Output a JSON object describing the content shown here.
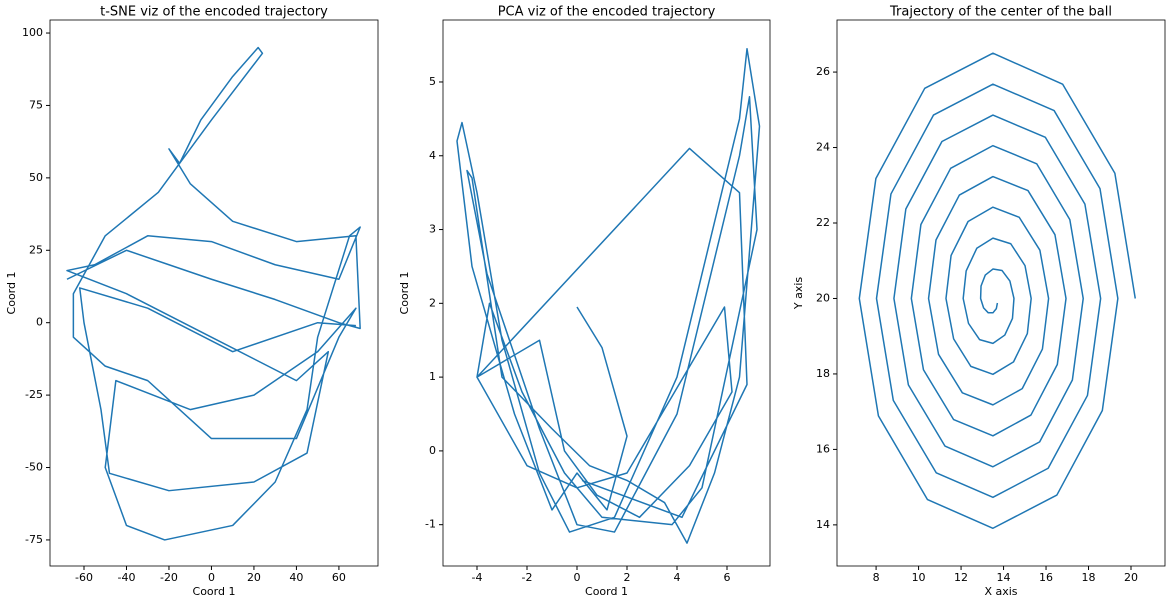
{
  "chart_data": [
    {
      "type": "line",
      "title": "t-SNE viz of the encoded trajectory",
      "xlabel": "Coord 1",
      "ylabel": "Coord 1",
      "color": "#1f77b4",
      "xlim": [
        -76,
        78.4
      ],
      "ylim": [
        -84,
        104.5
      ],
      "xticks": [
        -60,
        -40,
        -20,
        0,
        20,
        40,
        60
      ],
      "yticks": [
        -75,
        -50,
        -25,
        0,
        25,
        50,
        75,
        100
      ],
      "x": [
        -68,
        -40,
        -20,
        0,
        30,
        60,
        70,
        68,
        40,
        10,
        -10,
        -20,
        -15,
        -5,
        10,
        22,
        24,
        0,
        -25,
        -50,
        -65,
        -65,
        -50,
        -30,
        0,
        40,
        60,
        68,
        50,
        20,
        -10,
        -45,
        -50,
        -40,
        -22,
        10,
        30,
        45,
        50,
        65,
        70,
        60,
        30,
        0,
        -30,
        -55,
        -68,
        -40,
        0,
        40,
        55,
        45,
        20,
        -20,
        -48,
        -52,
        -60,
        -62,
        -30,
        10,
        50,
        68
      ],
      "values": [
        15,
        25,
        20,
        15,
        8,
        0,
        -2,
        30,
        28,
        35,
        48,
        60,
        55,
        70,
        85,
        95,
        93,
        70,
        45,
        30,
        10,
        -5,
        -15,
        -20,
        -40,
        -40,
        -5,
        5,
        -10,
        -25,
        -30,
        -20,
        -50,
        -70,
        -75,
        -70,
        -55,
        -30,
        -5,
        30,
        33,
        15,
        20,
        28,
        30,
        20,
        18,
        10,
        -5,
        -20,
        -10,
        -45,
        -55,
        -58,
        -52,
        -30,
        0,
        12,
        5,
        -10,
        0,
        -1
      ]
    },
    {
      "type": "line",
      "title": "PCA viz of the encoded trajectory",
      "xlabel": "Coord 1",
      "ylabel": "Coord 1",
      "color": "#1f77b4",
      "xlim": [
        -5.36,
        7.72
      ],
      "ylim": [
        -1.56,
        5.84
      ],
      "xticks": [
        -4,
        -2,
        0,
        2,
        4,
        6
      ],
      "yticks": [
        -1,
        0,
        1,
        2,
        3,
        4,
        5
      ],
      "x": [
        0,
        1,
        2,
        1.2,
        0,
        -1,
        -2.5,
        -4.2,
        -4.8,
        -4.6,
        -4,
        -3,
        -1.5,
        -0.3,
        1.5,
        4,
        6.5,
        6.8,
        7.3,
        6.5,
        5.5,
        4.4,
        3.5,
        2,
        0.5,
        -1,
        -3,
        -4.2,
        -4.4,
        -3.6,
        -1.5,
        0,
        1.5,
        4,
        6.5,
        6.9,
        7.2,
        5,
        3.8,
        1,
        -0.5,
        -2.2,
        -3.5,
        -4,
        -2,
        0,
        2,
        5.9,
        6.2,
        4.5,
        2.5,
        0.8,
        -0.5,
        -1.5,
        -4,
        4.5,
        6.5,
        6.8,
        4.2,
        0.2
      ],
      "values": [
        1.95,
        1.4,
        0.2,
        -0.8,
        -0.3,
        -0.8,
        0.5,
        2.5,
        4.2,
        4.45,
        3.5,
        1.5,
        -0.3,
        -1.1,
        -0.9,
        1,
        4.5,
        5.45,
        4.4,
        1,
        -0.3,
        -1.25,
        -0.7,
        -0.4,
        -0.2,
        0.3,
        1,
        3.7,
        3.8,
        2.4,
        0.3,
        -1,
        -1.1,
        0.5,
        4,
        4.8,
        3,
        -0.5,
        -1,
        -0.9,
        -0.3,
        0.8,
        2,
        1,
        -0.2,
        -0.5,
        -0.3,
        1.95,
        0.8,
        -0.2,
        -0.9,
        -0.6,
        0,
        1.5,
        1,
        4.1,
        3.5,
        0.9,
        -0.9,
        -0.4
      ]
    },
    {
      "type": "line",
      "title": "Trajectory of the center of the ball",
      "xlabel": "X axis",
      "ylabel": "Y axis",
      "color": "#1f77b4",
      "xlim": [
        6.16,
        21.6
      ],
      "ylim": [
        12.91,
        27.38
      ],
      "xticks": [
        8,
        10,
        12,
        14,
        16,
        18,
        20
      ],
      "yticks": [
        14,
        16,
        18,
        20,
        22,
        24,
        26
      ],
      "x": [
        20.2,
        19.24,
        16.78,
        13.5,
        10.29,
        7.99,
        7.21,
        8.11,
        10.42,
        13.5,
        16.51,
        18.65,
        19.38,
        18.54,
        16.38,
        13.5,
        10.7,
        8.7,
        8.02,
        8.81,
        10.83,
        13.5,
        16.1,
        17.95,
        18.57,
        17.83,
        15.97,
        13.5,
        11.1,
        9.4,
        8.84,
        9.52,
        11.24,
        13.5,
        15.7,
        17.24,
        17.75,
        17.12,
        15.56,
        13.5,
        11.51,
        10.11,
        9.66,
        10.23,
        11.65,
        13.5,
        15.29,
        16.53,
        16.94,
        16.42,
        15.15,
        13.5,
        11.92,
        10.82,
        10.47,
        10.94,
        12.06,
        13.5,
        14.88,
        15.83,
        16.12,
        15.71,
        14.74,
        13.5,
        12.33,
        11.53,
        11.29,
        11.65,
        12.46,
        13.5,
        14.47,
        15.12,
        15.3,
        15.01,
        14.34,
        13.5,
        12.74,
        12.24,
        12.1,
        12.35,
        12.87,
        13.5,
        14.06,
        14.42,
        14.49,
        14.3,
        13.93,
        13.5,
        13.14,
        12.94,
        12.92,
        13.06,
        13.28,
        13.5,
        13.66,
        13.71
      ],
      "values": [
        20.0,
        23.32,
        25.68,
        26.5,
        25.57,
        23.18,
        20.0,
        16.89,
        14.67,
        13.91,
        14.79,
        17.03,
        20.0,
        22.91,
        24.98,
        25.68,
        24.86,
        22.77,
        20.0,
        17.3,
        15.38,
        14.73,
        15.5,
        17.43,
        20.0,
        22.5,
        24.27,
        24.86,
        24.16,
        22.37,
        20.0,
        17.71,
        16.09,
        15.54,
        16.2,
        17.84,
        20.0,
        22.09,
        23.57,
        24.05,
        23.45,
        21.96,
        20.0,
        18.11,
        16.79,
        16.36,
        16.91,
        18.25,
        20.0,
        21.69,
        22.86,
        23.23,
        22.74,
        21.55,
        20.0,
        18.52,
        17.5,
        17.18,
        17.61,
        18.66,
        20.0,
        21.28,
        22.15,
        22.42,
        22.04,
        21.14,
        20.0,
        18.93,
        18.2,
        17.99,
        18.32,
        19.07,
        20.0,
        20.87,
        21.45,
        21.6,
        21.33,
        20.73,
        20.0,
        19.34,
        18.91,
        18.81,
        19.03,
        19.47,
        20.0,
        20.46,
        20.74,
        20.78,
        20.62,
        20.33,
        20.0,
        19.75,
        19.62,
        19.62,
        19.73,
        19.88
      ]
    }
  ]
}
